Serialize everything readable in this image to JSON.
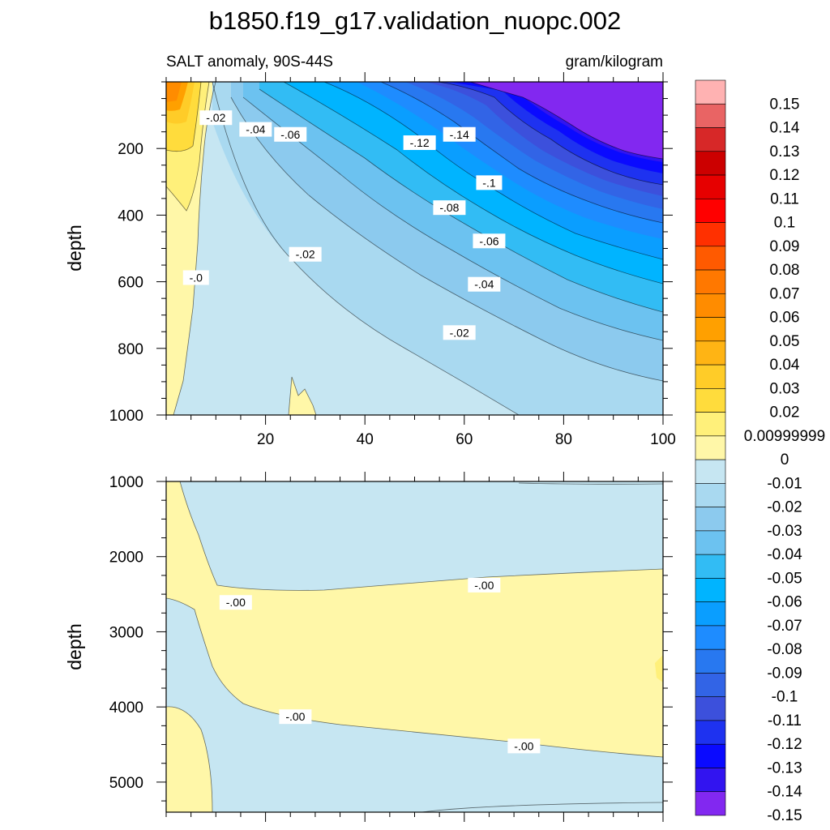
{
  "figure": {
    "title": "b1850.f19_g17.validation_nuopc.002",
    "subtitle_left": "SALT anomaly, 90S-44S",
    "subtitle_right": "gram/kilogram"
  },
  "chart_data": [
    {
      "type": "heatmap",
      "panel": "upper",
      "title": "b1850.f19_g17.validation_nuopc.002",
      "subtitle": "SALT anomaly, 90S-44S",
      "units": "gram/kilogram",
      "xlabel": "",
      "ylabel": "depth",
      "xlim": [
        0,
        100
      ],
      "ylim": [
        1000,
        0
      ],
      "x_ticks": [
        20,
        40,
        60,
        80,
        100
      ],
      "y_ticks": [
        200,
        400,
        600,
        800,
        1000
      ],
      "grid": false,
      "legend": "right",
      "contour_labels": [
        {
          "text": "-.02",
          "x": 10,
          "y": 110
        },
        {
          "text": "-.04",
          "x": 18,
          "y": 145
        },
        {
          "text": "-.06",
          "x": 25,
          "y": 160
        },
        {
          "text": "-.12",
          "x": 51,
          "y": 185
        },
        {
          "text": "-.14",
          "x": 59,
          "y": 160
        },
        {
          "text": "-.1",
          "x": 65,
          "y": 305
        },
        {
          "text": "-.08",
          "x": 57,
          "y": 380
        },
        {
          "text": "-.06",
          "x": 65,
          "y": 480
        },
        {
          "text": "-.04",
          "x": 64,
          "y": 610
        },
        {
          "text": "-.02",
          "x": 59,
          "y": 755
        },
        {
          "text": "-.02",
          "x": 28,
          "y": 520
        },
        {
          "text": "-.0",
          "x": 6,
          "y": 590
        }
      ]
    },
    {
      "type": "heatmap",
      "panel": "lower",
      "xlabel": "",
      "ylabel": "depth",
      "xlim": [
        0,
        100
      ],
      "ylim": [
        5400,
        1000
      ],
      "y_ticks": [
        1000,
        2000,
        3000,
        4000,
        5000
      ],
      "grid": false,
      "legend": "right",
      "contour_labels": [
        {
          "text": "-.00",
          "x": 14,
          "y": 2620
        },
        {
          "text": "-.00",
          "x": 64,
          "y": 2390
        },
        {
          "text": "-.00",
          "x": 26,
          "y": 4140
        },
        {
          "text": "-.00",
          "x": 72,
          "y": 4530
        }
      ]
    }
  ],
  "colorbar": {
    "labels": [
      "0.15",
      "0.14",
      "0.13",
      "0.12",
      "0.11",
      "0.1",
      "0.09",
      "0.08",
      "0.07",
      "0.06",
      "0.05",
      "0.04",
      "0.03",
      "0.02",
      "0.00999999",
      "0",
      "-0.01",
      "-0.02",
      "-0.03",
      "-0.04",
      "-0.05",
      "-0.06",
      "-0.07",
      "-0.08",
      "-0.09",
      "-0.1",
      "-0.11",
      "-0.12",
      "-0.13",
      "-0.14",
      "-0.15"
    ],
    "colors": [
      "#FFB2B2",
      "#E96464",
      "#D72828",
      "#CC0000",
      "#E60000",
      "#FF0000",
      "#FF3000",
      "#FF5A00",
      "#FF7800",
      "#FF8C00",
      "#FFA000",
      "#FFB414",
      "#FFCC28",
      "#FFDC3C",
      "#FFF07A",
      "#FFF7A8",
      "#C6E6F2",
      "#A9D9F0",
      "#8CCAEE",
      "#6CC2F0",
      "#32BCF4",
      "#00B4FF",
      "#0A9EFF",
      "#1E8CFF",
      "#2878F0",
      "#3264E6",
      "#3C50DC",
      "#1E32F0",
      "#0A0AFF",
      "#3214F0",
      "#8228F0"
    ]
  }
}
